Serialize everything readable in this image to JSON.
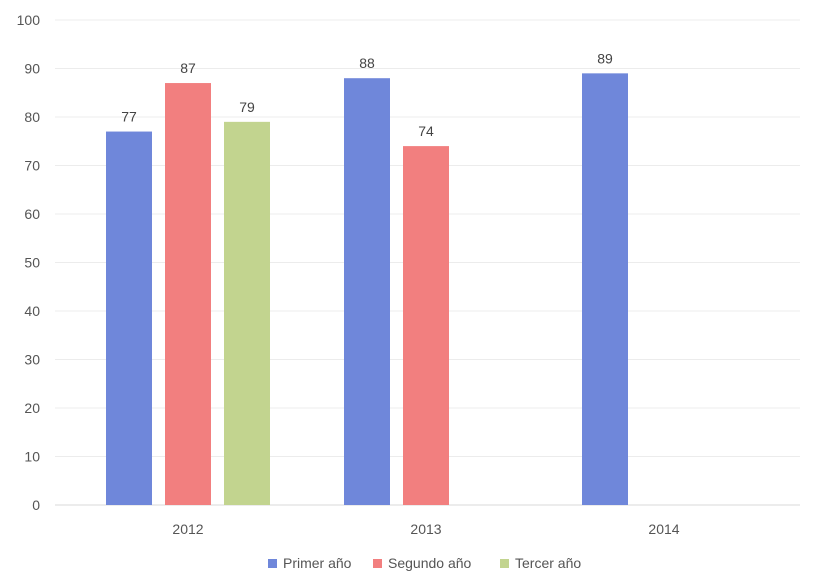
{
  "chart_data": {
    "type": "bar",
    "title": "",
    "xlabel": "",
    "ylabel": "",
    "categories": [
      "2012",
      "2013",
      "2014"
    ],
    "ylim": [
      0,
      100
    ],
    "yticks": [
      0,
      10,
      20,
      30,
      40,
      50,
      60,
      70,
      80,
      90,
      100
    ],
    "grid": true,
    "legend_position": "bottom",
    "series": [
      {
        "name": "Primer año",
        "color": "#6f87da",
        "values": [
          77,
          88,
          89
        ]
      },
      {
        "name": "Segundo año",
        "color": "#f27f7f",
        "values": [
          87,
          74,
          null
        ]
      },
      {
        "name": "Tercer año",
        "color": "#c2d48f",
        "values": [
          79,
          null,
          null
        ]
      }
    ]
  }
}
